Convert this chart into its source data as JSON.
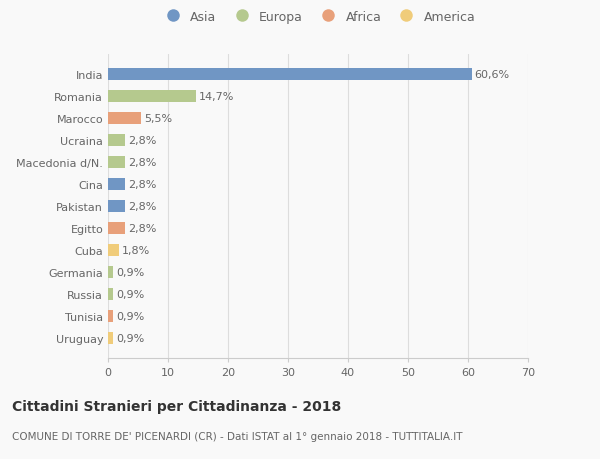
{
  "countries": [
    "India",
    "Romania",
    "Marocco",
    "Ucraina",
    "Macedonia d/N.",
    "Cina",
    "Pakistan",
    "Egitto",
    "Cuba",
    "Germania",
    "Russia",
    "Tunisia",
    "Uruguay"
  ],
  "values": [
    60.6,
    14.7,
    5.5,
    2.8,
    2.8,
    2.8,
    2.8,
    2.8,
    1.8,
    0.9,
    0.9,
    0.9,
    0.9
  ],
  "labels": [
    "60,6%",
    "14,7%",
    "5,5%",
    "2,8%",
    "2,8%",
    "2,8%",
    "2,8%",
    "2,8%",
    "1,8%",
    "0,9%",
    "0,9%",
    "0,9%",
    "0,9%"
  ],
  "continents": [
    "Asia",
    "Europa",
    "Africa",
    "Europa",
    "Europa",
    "Asia",
    "Asia",
    "Africa",
    "America",
    "Europa",
    "Europa",
    "Africa",
    "America"
  ],
  "continent_colors": {
    "Asia": "#7096c4",
    "Europa": "#b5c98e",
    "Africa": "#e8a07a",
    "America": "#f0cc7a"
  },
  "legend_order": [
    "Asia",
    "Europa",
    "Africa",
    "America"
  ],
  "xlim": [
    0,
    70
  ],
  "xticks": [
    0,
    10,
    20,
    30,
    40,
    50,
    60,
    70
  ],
  "title": "Cittadini Stranieri per Cittadinanza - 2018",
  "subtitle": "COMUNE DI TORRE DE' PICENARDI (CR) - Dati ISTAT al 1° gennaio 2018 - TUTTITALIA.IT",
  "background_color": "#f9f9f9",
  "bar_height": 0.55,
  "label_fontsize": 8,
  "tick_fontsize": 8,
  "title_fontsize": 10,
  "subtitle_fontsize": 7.5
}
